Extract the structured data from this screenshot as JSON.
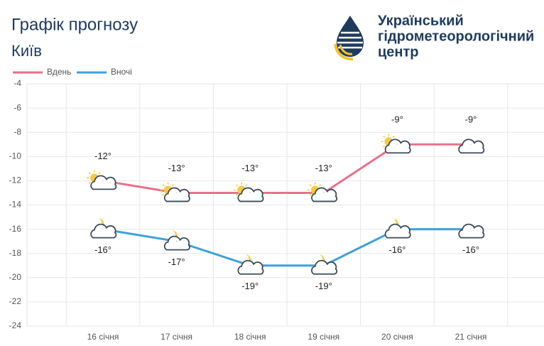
{
  "chart_data": {
    "type": "line",
    "title": "Графік прогнозу",
    "subtitle": "Київ",
    "categories": [
      "16 січня",
      "17 січня",
      "18 січня",
      "19 січня",
      "20 січня",
      "21 січня"
    ],
    "series": [
      {
        "name": "Вдень",
        "color": "#e8718a",
        "values": [
          -12,
          -13,
          -13,
          -13,
          -9,
          -9
        ],
        "value_labels": [
          "-12°",
          "-13°",
          "-13°",
          "-13°",
          "-9°",
          "-9°"
        ]
      },
      {
        "name": "Вночі",
        "color": "#3fa0d9",
        "values": [
          -16,
          -17,
          -19,
          -19,
          -16,
          -16
        ],
        "value_labels": [
          "-16°",
          "-17°",
          "-19°",
          "-19°",
          "-16°",
          "-16°"
        ]
      }
    ],
    "ylim": [
      -24,
      -4
    ],
    "yticks": [
      -24,
      -22,
      -20,
      -18,
      -16,
      -14,
      -12,
      -10,
      -8,
      -6,
      -4
    ],
    "grid": true
  },
  "organization": [
    "Український",
    "гідрометеорологічний",
    "центр"
  ]
}
